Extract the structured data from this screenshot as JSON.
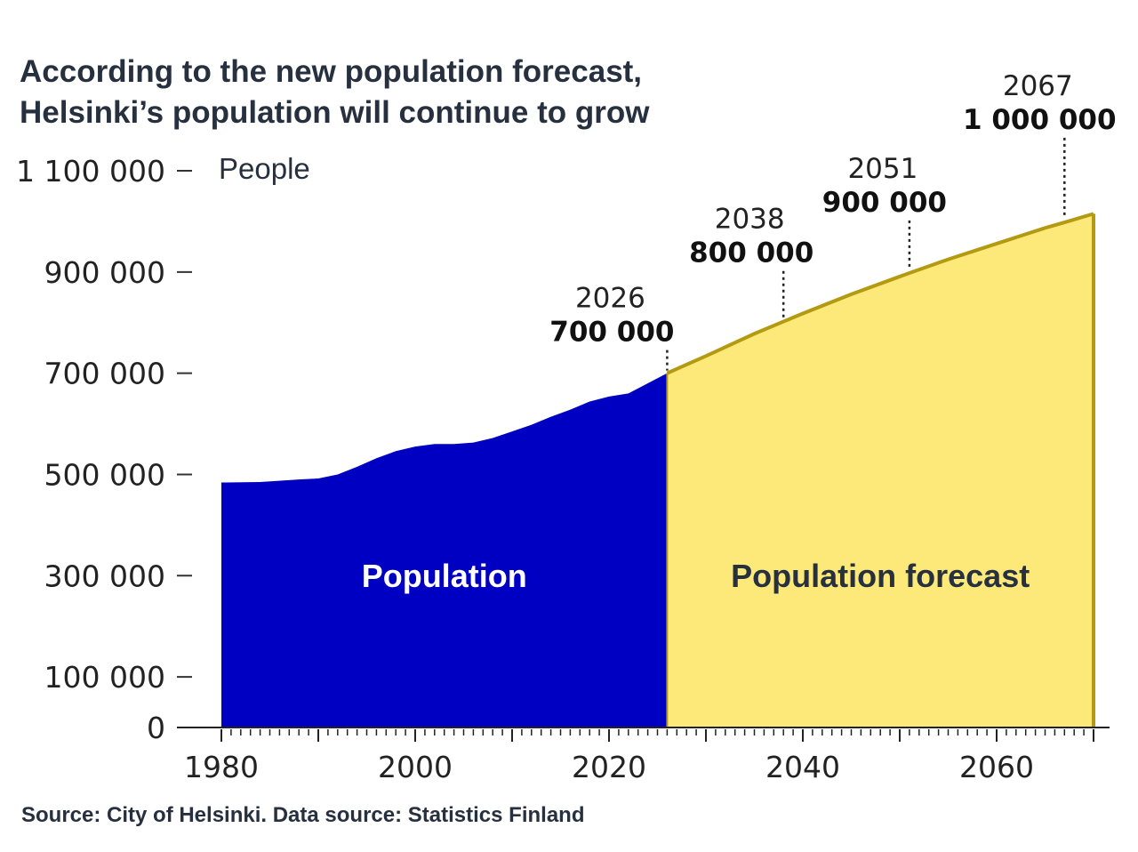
{
  "title": {
    "line1": "According to the new population forecast,",
    "line2": "Helsinki’s population will continue to grow"
  },
  "source": "Source: City of Helsinki. Data source: Statistics Finland",
  "colors": {
    "population_fill": "#0000c2",
    "forecast_fill": "#fde87a",
    "forecast_stroke": "#b39a10",
    "text_dark": "#26303e"
  },
  "chart_data": {
    "type": "area",
    "ylabel": "People",
    "xlim": [
      1980,
      2070
    ],
    "ylim": [
      0,
      1100000
    ],
    "y_ticks": [
      {
        "value": 0,
        "label": "0"
      },
      {
        "value": 100000,
        "label": "100 000"
      },
      {
        "value": 300000,
        "label": "300 000"
      },
      {
        "value": 500000,
        "label": "500 000"
      },
      {
        "value": 700000,
        "label": "700 000"
      },
      {
        "value": 900000,
        "label": "900 000"
      },
      {
        "value": 1100000,
        "label": "1 100 000"
      }
    ],
    "x_ticks": [
      {
        "value": 1980,
        "label": "1980"
      },
      {
        "value": 2000,
        "label": "2000"
      },
      {
        "value": 2020,
        "label": "2020"
      },
      {
        "value": 2040,
        "label": "2040"
      },
      {
        "value": 2060,
        "label": "2060"
      }
    ],
    "series": [
      {
        "name": "Population",
        "x": [
          1980,
          1984,
          1988,
          1990,
          1992,
          1994,
          1996,
          1998,
          2000,
          2002,
          2004,
          2006,
          2008,
          2010,
          2012,
          2014,
          2016,
          2018,
          2020,
          2022,
          2024,
          2026
        ],
        "y": [
          484000,
          485000,
          490000,
          492000,
          500000,
          515000,
          532000,
          546000,
          555000,
          560000,
          560000,
          563000,
          572000,
          585000,
          598000,
          614000,
          628000,
          644000,
          654000,
          660000,
          680000,
          700000
        ]
      },
      {
        "name": "Population forecast",
        "x": [
          2026,
          2030,
          2035,
          2038,
          2040,
          2045,
          2050,
          2051,
          2055,
          2060,
          2065,
          2067,
          2070
        ],
        "y": [
          700000,
          734000,
          778000,
          802000,
          818000,
          856000,
          891000,
          898000,
          925000,
          956000,
          987000,
          998000,
          1015000
        ]
      }
    ],
    "annotations": [
      {
        "year": "2026",
        "value": "700 000",
        "x": 2026,
        "y": 700000
      },
      {
        "year": "2038",
        "value": "800 000",
        "x": 2038,
        "y": 800000
      },
      {
        "year": "2051",
        "value": "900 000",
        "x": 2051,
        "y": 900000
      },
      {
        "year": "2067",
        "value": "1 000 000",
        "x": 2067,
        "y": 1000000
      }
    ]
  }
}
